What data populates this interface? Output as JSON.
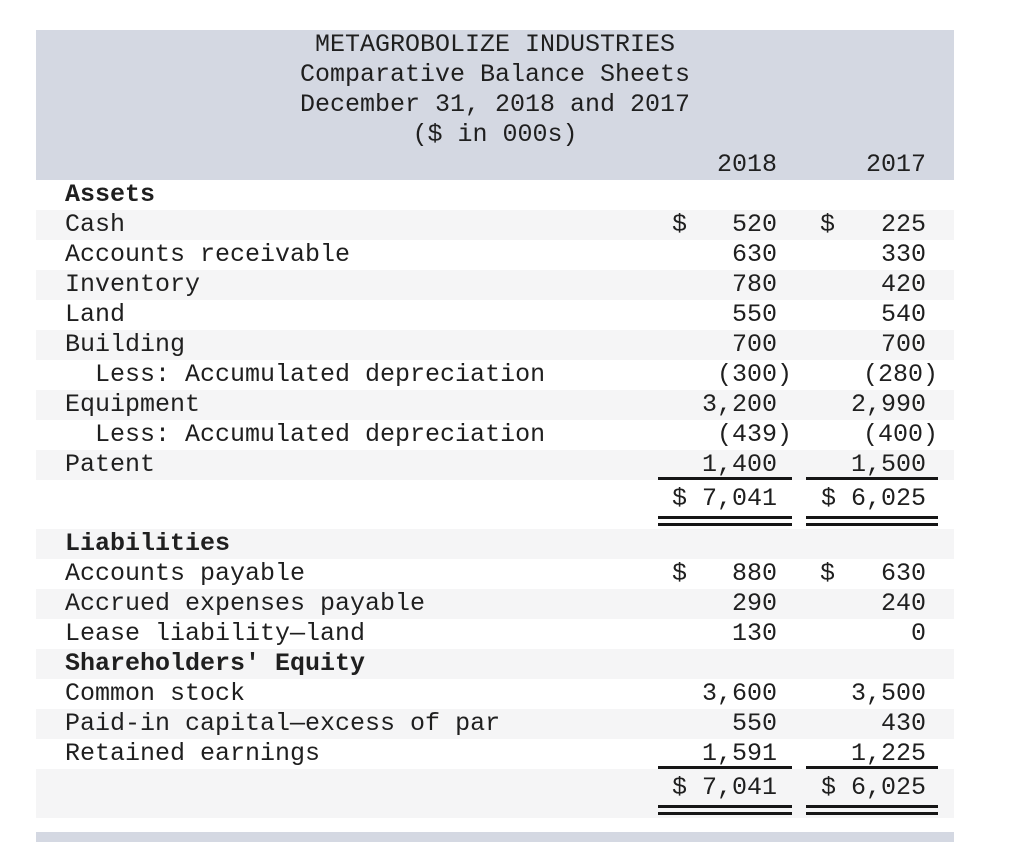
{
  "report": {
    "title_lines": [
      "METAGROBOLIZE INDUSTRIES",
      "Comparative Balance Sheets",
      "December 31, 2018 and 2017",
      "($ in 000s)"
    ],
    "year_headers": [
      "2018",
      "2017"
    ]
  },
  "colors": {
    "header_band": "#d4d8e2",
    "row_stripe": "#f5f5f6",
    "rule": "#161616",
    "text": "#1f1f1f"
  },
  "rows": [
    {
      "type": "section",
      "label": "Assets"
    },
    {
      "type": "item",
      "label": "Cash",
      "dollar": "$",
      "v2018": "520",
      "v2017": "225"
    },
    {
      "type": "item",
      "label": "Accounts receivable",
      "v2018": "630",
      "v2017": "330"
    },
    {
      "type": "item",
      "label": "Inventory",
      "v2018": "780",
      "v2017": "420"
    },
    {
      "type": "item",
      "label": "Land",
      "v2018": "550",
      "v2017": "540"
    },
    {
      "type": "item",
      "label": "Building",
      "v2018": "700",
      "v2017": "700"
    },
    {
      "type": "item",
      "label": "Less: Accumulated depreciation",
      "indent": true,
      "v2018": "(300)",
      "v2017": "(280)"
    },
    {
      "type": "item",
      "label": "Equipment",
      "v2018": "3,200",
      "v2017": "2,990"
    },
    {
      "type": "item",
      "label": "Less: Accumulated depreciation",
      "indent": true,
      "v2018": "(439)",
      "v2017": "(400)"
    },
    {
      "type": "item",
      "label": "Patent",
      "v2018": "1,400",
      "v2017": "1,500",
      "rule": "single"
    },
    {
      "type": "total",
      "label": "",
      "v2018": "$ 7,041",
      "v2017": "$ 6,025",
      "rule": "double"
    },
    {
      "type": "section",
      "label": "Liabilities"
    },
    {
      "type": "item",
      "label": "Accounts payable",
      "dollar": "$",
      "v2018": "880",
      "v2017": "630"
    },
    {
      "type": "item",
      "label": "Accrued expenses payable",
      "v2018": "290",
      "v2017": "240"
    },
    {
      "type": "item",
      "label": "Lease liability—land",
      "v2018": "130",
      "v2017": "0"
    },
    {
      "type": "section",
      "label": "Shareholders' Equity"
    },
    {
      "type": "item",
      "label": "Common stock",
      "v2018": "3,600",
      "v2017": "3,500"
    },
    {
      "type": "item",
      "label": "Paid-in capital—excess of par",
      "v2018": "550",
      "v2017": "430"
    },
    {
      "type": "item",
      "label": "Retained earnings",
      "v2018": "1,591",
      "v2017": "1,225",
      "rule": "single"
    },
    {
      "type": "total",
      "label": "",
      "v2018": "$ 7,041",
      "v2017": "$ 6,025",
      "rule": "double"
    }
  ]
}
